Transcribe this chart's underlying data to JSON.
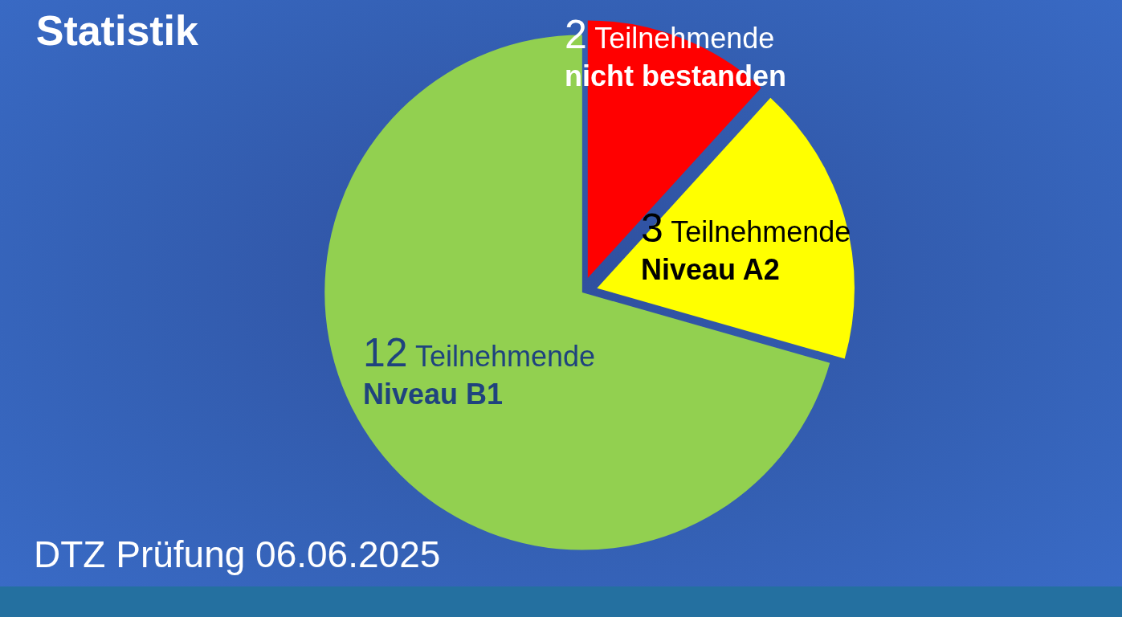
{
  "chart_data": {
    "type": "pie",
    "title": "Statistik",
    "categories": [
      "nicht bestanden",
      "Niveau A2",
      "Niveau B1"
    ],
    "values": [
      2,
      3,
      12
    ],
    "colors": [
      "#ff0000",
      "#ffff00",
      "#92d050"
    ],
    "value_labels": [
      "2 Teilnehmende",
      "3 Teilnehmende",
      "12 Teilnehmende"
    ],
    "annotations": [
      "DTZ Prüfung 06.06.2025"
    ],
    "legend": false
  }
}
